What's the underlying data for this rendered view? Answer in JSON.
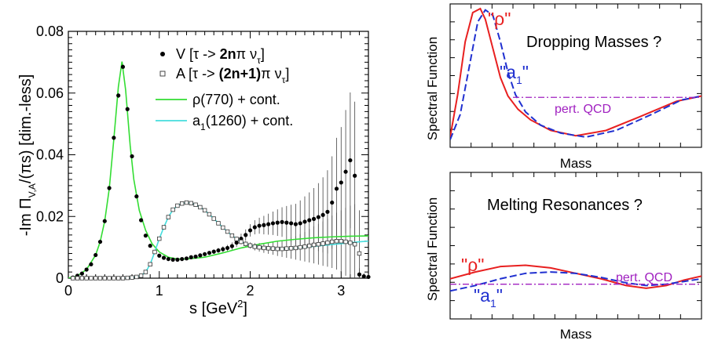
{
  "chart_data": [
    {
      "type": "scatter",
      "xlabel_base": "s [GeV",
      "xlabel_sup": "2",
      "xlabel_end": "]",
      "ylabel_pre": "-Im Π",
      "ylabel_sub": "V,A",
      "ylabel_post": "/(πs) [dim.-less]",
      "xlim": [
        0,
        3.3
      ],
      "ylim": [
        0,
        0.08
      ],
      "xticks": [
        {
          "v": 0,
          "label": "0"
        },
        {
          "v": 1,
          "label": "1"
        },
        {
          "v": 2,
          "label": "2"
        },
        {
          "v": 3,
          "label": "3"
        }
      ],
      "yticks": [
        {
          "v": 0,
          "label": "0"
        },
        {
          "v": 0.02,
          "label": "0.02"
        },
        {
          "v": 0.04,
          "label": "0.04"
        },
        {
          "v": 0.06,
          "label": "0.06"
        },
        {
          "v": 0.08,
          "label": "0.08"
        }
      ],
      "legend_position": "top-right",
      "legend": [
        {
          "marker": "dot",
          "parts": [
            {
              "t": "V  [τ -> ",
              "b": false
            },
            {
              "t": "2n",
              "b": true
            },
            {
              "t": "π ν",
              "b": false
            },
            {
              "t": "τ",
              "sub": true
            },
            {
              "t": "]",
              "b": false
            }
          ]
        },
        {
          "marker": "square",
          "parts": [
            {
              "t": "A  [τ -> ",
              "b": false
            },
            {
              "t": "(2n+1)",
              "b": true
            },
            {
              "t": "π ν",
              "b": false
            },
            {
              "t": "τ",
              "sub": true
            },
            {
              "t": "]",
              "b": false
            }
          ]
        },
        {
          "marker": "line",
          "color": "#33dd33",
          "parts": [
            {
              "t": "ρ(770)    + cont.",
              "b": false
            }
          ]
        },
        {
          "marker": "line",
          "color": "#44dddd",
          "parts": [
            {
              "t": "a",
              "b": false
            },
            {
              "t": "1",
              "sub": true
            },
            {
              "t": "(1260) + cont.",
              "b": false
            }
          ]
        }
      ],
      "series": [
        {
          "name": "V [τ -> 2nπ ντ]",
          "style": "dot",
          "x": [
            0.05,
            0.1,
            0.15,
            0.2,
            0.25,
            0.3,
            0.35,
            0.4,
            0.45,
            0.5,
            0.55,
            0.6,
            0.65,
            0.7,
            0.75,
            0.8,
            0.85,
            0.9,
            0.95,
            1.0,
            1.05,
            1.1,
            1.15,
            1.2,
            1.25,
            1.3,
            1.35,
            1.4,
            1.45,
            1.5,
            1.55,
            1.6,
            1.65,
            1.7,
            1.75,
            1.8,
            1.85,
            1.9,
            1.95,
            2.0,
            2.05,
            2.1,
            2.15,
            2.2,
            2.25,
            2.3,
            2.35,
            2.4,
            2.45,
            2.5,
            2.55,
            2.6,
            2.65,
            2.7,
            2.75,
            2.8,
            2.85,
            2.9,
            2.95,
            3.0,
            3.05,
            3.1,
            3.15,
            3.2,
            3.25,
            3.3
          ],
          "y": [
            0.0002,
            0.0008,
            0.0015,
            0.0028,
            0.0045,
            0.0075,
            0.0118,
            0.0185,
            0.0292,
            0.0455,
            0.0592,
            0.0685,
            0.0548,
            0.0395,
            0.0265,
            0.0188,
            0.0138,
            0.0105,
            0.0085,
            0.0073,
            0.0066,
            0.0062,
            0.006,
            0.006,
            0.0062,
            0.0064,
            0.0068,
            0.007,
            0.0074,
            0.0078,
            0.0082,
            0.0086,
            0.009,
            0.0094,
            0.0098,
            0.0104,
            0.0115,
            0.0128,
            0.014,
            0.0155,
            0.0165,
            0.017,
            0.0172,
            0.0175,
            0.0178,
            0.018,
            0.0182,
            0.018,
            0.0178,
            0.0175,
            0.0178,
            0.0183,
            0.0188,
            0.0192,
            0.0198,
            0.0205,
            0.0215,
            0.0245,
            0.029,
            0.031,
            0.0345,
            0.0382,
            0.0332,
            0.0012,
            0.0006,
            0.0004
          ],
          "err": [
            0.0001,
            0.0001,
            0.0001,
            0.0002,
            0.0002,
            0.0002,
            0.0003,
            0.0004,
            0.0005,
            0.0007,
            0.0008,
            0.0009,
            0.0008,
            0.0006,
            0.0005,
            0.0004,
            0.0004,
            0.0003,
            0.0003,
            0.0003,
            0.0003,
            0.0003,
            0.0003,
            0.0003,
            0.0004,
            0.0004,
            0.0004,
            0.0005,
            0.0005,
            0.0006,
            0.0006,
            0.0007,
            0.0008,
            0.0009,
            0.001,
            0.0012,
            0.0014,
            0.0016,
            0.0018,
            0.002,
            0.0023,
            0.0026,
            0.003,
            0.0034,
            0.0038,
            0.0043,
            0.0048,
            0.0054,
            0.006,
            0.0066,
            0.0074,
            0.0082,
            0.009,
            0.01,
            0.011,
            0.0122,
            0.0135,
            0.015,
            0.0165,
            0.018,
            0.02,
            0.022,
            0.024,
            0.002,
            0.001,
            0.0008
          ]
        },
        {
          "name": "A [τ -> (2n+1)π ντ]",
          "style": "square",
          "x": [
            0.05,
            0.1,
            0.15,
            0.2,
            0.25,
            0.3,
            0.35,
            0.4,
            0.45,
            0.5,
            0.55,
            0.6,
            0.65,
            0.7,
            0.75,
            0.8,
            0.85,
            0.9,
            0.95,
            1.0,
            1.05,
            1.1,
            1.15,
            1.2,
            1.25,
            1.3,
            1.35,
            1.4,
            1.45,
            1.5,
            1.55,
            1.6,
            1.65,
            1.7,
            1.75,
            1.8,
            1.85,
            1.9,
            1.95,
            2.0,
            2.05,
            2.1,
            2.15,
            2.2,
            2.25,
            2.3,
            2.35,
            2.4,
            2.45,
            2.5,
            2.55,
            2.6,
            2.65,
            2.7,
            2.75,
            2.8,
            2.85,
            2.9,
            2.95,
            3.0,
            3.05,
            3.1,
            3.15,
            3.2
          ],
          "y": [
            0,
            0,
            0,
            0,
            0,
            0,
            0,
            0,
            0,
            0,
            0,
            0,
            0.0001,
            0.0002,
            0.0004,
            0.0008,
            0.002,
            0.0045,
            0.0085,
            0.0128,
            0.0165,
            0.0198,
            0.0222,
            0.0235,
            0.0242,
            0.0245,
            0.0243,
            0.0238,
            0.023,
            0.022,
            0.0207,
            0.0193,
            0.0178,
            0.0164,
            0.0151,
            0.0138,
            0.0127,
            0.0118,
            0.0111,
            0.0106,
            0.0102,
            0.01,
            0.0098,
            0.0097,
            0.0096,
            0.0095,
            0.0095,
            0.0096,
            0.0097,
            0.0098,
            0.01,
            0.0102,
            0.0105,
            0.0108,
            0.011,
            0.0112,
            0.0115,
            0.0118,
            0.012,
            0.012,
            0.0118,
            0.0115,
            0.011,
            0.008
          ],
          "err": [
            0,
            0,
            0,
            0,
            0,
            0,
            0,
            0,
            0,
            0,
            0,
            0,
            0.0001,
            0.0001,
            0.0001,
            0.0001,
            0.0002,
            0.0003,
            0.0004,
            0.0005,
            0.0005,
            0.0006,
            0.0006,
            0.0006,
            0.0006,
            0.0006,
            0.0006,
            0.0006,
            0.0006,
            0.0006,
            0.0006,
            0.0006,
            0.0006,
            0.0006,
            0.0006,
            0.0006,
            0.0007,
            0.0008,
            0.0009,
            0.001,
            0.0012,
            0.0014,
            0.0016,
            0.0018,
            0.002,
            0.0023,
            0.0026,
            0.003,
            0.0034,
            0.0038,
            0.0043,
            0.0048,
            0.0054,
            0.006,
            0.0066,
            0.0072,
            0.0078,
            0.0085,
            0.0092,
            0.01,
            0.011,
            0.012,
            0.013,
            0.014
          ]
        },
        {
          "name": "ρ(770) + cont.",
          "style": "line",
          "color": "#33dd33",
          "x": [
            0,
            0.1,
            0.2,
            0.3,
            0.35,
            0.4,
            0.45,
            0.5,
            0.55,
            0.59,
            0.63,
            0.68,
            0.72,
            0.78,
            0.85,
            0.92,
            1.0,
            1.1,
            1.2,
            1.3,
            1.5,
            1.7,
            1.9,
            2.1,
            2.3,
            2.5,
            2.7,
            2.9,
            3.1,
            3.3
          ],
          "y": [
            0,
            0.0008,
            0.0028,
            0.0075,
            0.0118,
            0.0185,
            0.029,
            0.045,
            0.062,
            0.0702,
            0.061,
            0.043,
            0.032,
            0.022,
            0.0155,
            0.0112,
            0.0085,
            0.0068,
            0.0062,
            0.0062,
            0.0068,
            0.0082,
            0.0098,
            0.011,
            0.012,
            0.0126,
            0.0131,
            0.0134,
            0.0136,
            0.0137
          ]
        },
        {
          "name": "a1(1260) + cont.",
          "style": "line",
          "color": "#44dddd",
          "x": [
            0.6,
            0.7,
            0.8,
            0.85,
            0.9,
            0.95,
            1.0,
            1.05,
            1.1,
            1.15,
            1.2,
            1.25,
            1.3,
            1.35,
            1.4,
            1.45,
            1.5,
            1.55,
            1.6,
            1.7,
            1.8,
            1.9,
            2.0,
            2.2,
            2.4,
            2.6,
            2.8,
            3.0,
            3.2,
            3.3
          ],
          "y": [
            0,
            0.0002,
            0.0008,
            0.002,
            0.0045,
            0.0085,
            0.0128,
            0.0165,
            0.0198,
            0.0222,
            0.0235,
            0.0242,
            0.0245,
            0.0243,
            0.0238,
            0.023,
            0.022,
            0.0207,
            0.0193,
            0.0164,
            0.0138,
            0.0118,
            0.0106,
            0.0097,
            0.0095,
            0.01,
            0.0106,
            0.0112,
            0.0118,
            0.012
          ]
        }
      ]
    },
    {
      "type": "line",
      "title": "Dropping Masses ?",
      "ylabel": "Spectral  Function",
      "xlabel": "Mass",
      "xlim": [
        0,
        1
      ],
      "ylim": [
        0,
        1
      ],
      "annotations": [
        {
          "text": "pert. QCD",
          "color": "#a020c0"
        },
        {
          "text": "\"ρ\"",
          "color": "#e82020"
        },
        {
          "text": "\"a",
          "sub": "1",
          "end": "\"",
          "color": "#2030d0"
        }
      ],
      "series": [
        {
          "name": "\"ρ\"",
          "color": "#e82020",
          "dash": false,
          "x": [
            0,
            0.03,
            0.06,
            0.09,
            0.12,
            0.14,
            0.17,
            0.2,
            0.23,
            0.27,
            0.32,
            0.4,
            0.5,
            0.62,
            0.75,
            0.9,
            1.0
          ],
          "y": [
            0.03,
            0.35,
            0.75,
            0.97,
            1.0,
            0.92,
            0.7,
            0.48,
            0.34,
            0.24,
            0.16,
            0.08,
            0.04,
            0.08,
            0.18,
            0.3,
            0.34
          ]
        },
        {
          "name": "\"a1\"",
          "color": "#2030d0",
          "dash": true,
          "x": [
            0,
            0.04,
            0.08,
            0.11,
            0.14,
            0.17,
            0.2,
            0.23,
            0.26,
            0.3,
            0.36,
            0.44,
            0.54,
            0.66,
            0.8,
            0.92,
            1.0
          ],
          "y": [
            0.01,
            0.2,
            0.6,
            0.9,
            0.99,
            0.95,
            0.75,
            0.52,
            0.35,
            0.22,
            0.12,
            0.06,
            0.03,
            0.08,
            0.2,
            0.31,
            0.34
          ]
        },
        {
          "name": "pert. QCD",
          "color": "#a020c0",
          "dash": "dashdot",
          "x": [
            0.25,
            1.0
          ],
          "y": [
            0.33,
            0.33
          ]
        }
      ]
    },
    {
      "type": "line",
      "title": "Melting Resonances ?",
      "ylabel": "Spectral  Function",
      "xlabel": "Mass",
      "xlim": [
        0,
        1
      ],
      "ylim": [
        0,
        1
      ],
      "annotations": [
        {
          "text": "pert. QCD",
          "color": "#a020c0"
        },
        {
          "text": "\"ρ\"",
          "color": "#e82020"
        },
        {
          "text": "\"a",
          "sub": "1",
          "end": "\"",
          "color": "#2030d0"
        }
      ],
      "series": [
        {
          "name": "\"ρ\"",
          "color": "#e82020",
          "dash": false,
          "x": [
            0,
            0.1,
            0.2,
            0.3,
            0.4,
            0.5,
            0.6,
            0.7,
            0.78,
            0.86,
            0.93,
            1.0
          ],
          "y": [
            0.25,
            0.3,
            0.34,
            0.35,
            0.33,
            0.29,
            0.25,
            0.2,
            0.18,
            0.2,
            0.24,
            0.27
          ]
        },
        {
          "name": "\"a1\"",
          "color": "#2030d0",
          "dash": true,
          "x": [
            0,
            0.1,
            0.2,
            0.3,
            0.4,
            0.5,
            0.6,
            0.7,
            0.78,
            0.86,
            0.93,
            1.0
          ],
          "y": [
            0.16,
            0.2,
            0.25,
            0.29,
            0.3,
            0.29,
            0.26,
            0.22,
            0.2,
            0.21,
            0.23,
            0.25
          ]
        },
        {
          "name": "pert. QCD",
          "color": "#a020c0",
          "dash": "dashdot",
          "x": [
            0,
            1.0
          ],
          "y": [
            0.21,
            0.21
          ]
        }
      ]
    }
  ]
}
